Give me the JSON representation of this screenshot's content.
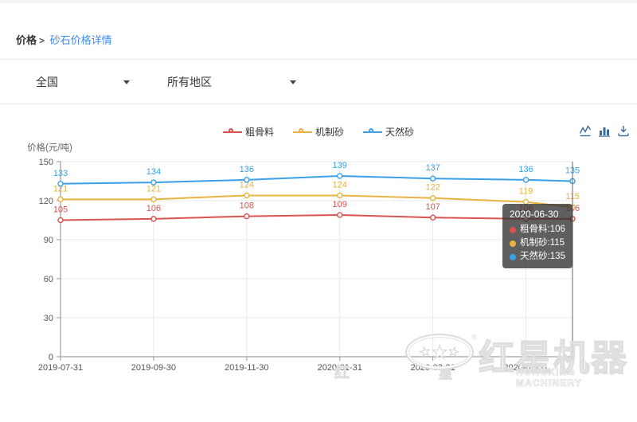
{
  "breadcrumb": {
    "root": "价格",
    "separator": ">",
    "current": "砂石价格详情"
  },
  "filters": {
    "region": {
      "value": "全国"
    },
    "area": {
      "value": "所有地区"
    }
  },
  "toolbox": {
    "color": "#3e6b9e",
    "icons": [
      "switch-to-line-chart",
      "switch-to-bar-chart",
      "download-image"
    ]
  },
  "chart_data": {
    "type": "line",
    "title": "",
    "ylabel": "价格(元/吨)",
    "xlabel": "",
    "x": [
      "2019-07-31",
      "2019-09-30",
      "2019-11-30",
      "2020-01-31",
      "2020-03-31",
      "2020-05-31",
      "2020-06-30"
    ],
    "x_month_offsets": [
      0,
      2,
      4,
      6,
      8,
      10,
      11
    ],
    "x_axis_labels_shown": [
      "2019-07-31",
      "2019-09-30",
      "2019-11-30",
      "2020-01-31",
      "2020-03-31",
      "2020-05-31"
    ],
    "ylim": [
      0,
      150
    ],
    "y_ticks": [
      0,
      30,
      60,
      90,
      120,
      150
    ],
    "grid": true,
    "legend_position": "top-center",
    "series": [
      {
        "name": "粗骨料",
        "color": "#d9534f",
        "values": [
          105,
          106,
          108,
          109,
          107,
          106,
          106
        ]
      },
      {
        "name": "机制砂",
        "color": "#e8b340",
        "values": [
          121,
          121,
          124,
          124,
          122,
          119,
          115
        ]
      },
      {
        "name": "天然砂",
        "color": "#3aa1e8",
        "values": [
          133,
          134,
          136,
          139,
          137,
          136,
          135
        ]
      }
    ],
    "active_point": "2020-06-30"
  },
  "tooltip": {
    "date": "2020-06-30",
    "separator": " : ",
    "rows": [
      {
        "name": "粗骨料",
        "value": "106"
      },
      {
        "name": "机制砂",
        "value": "115"
      },
      {
        "name": "天然砂",
        "value": "135"
      }
    ]
  },
  "watermark": {
    "star": "★",
    "registered": "®",
    "brand_cn": "红星机器",
    "brand_en": "HONGXING MACHINERY",
    "char_left": "红",
    "char_right": "星"
  }
}
